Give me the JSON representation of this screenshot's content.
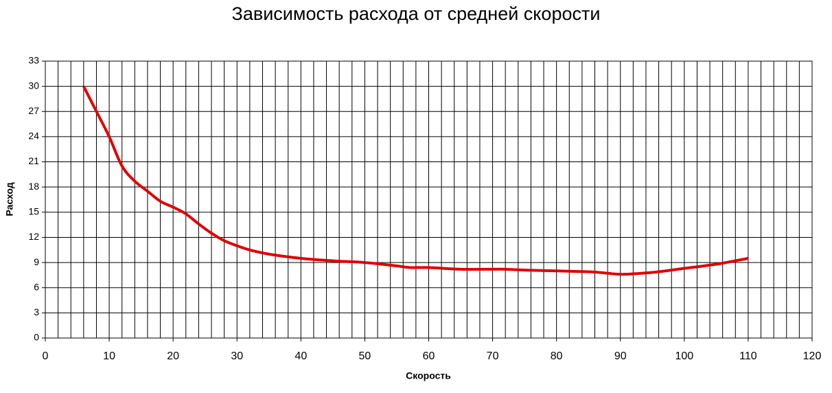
{
  "chart_data": {
    "type": "line",
    "title": "Зависимость расхода от средней скорости",
    "x_label": "Скорость",
    "y_label": "Расход",
    "x": [
      6,
      8,
      10,
      12,
      14,
      16,
      18,
      20,
      22,
      24,
      26,
      28,
      30,
      32,
      35,
      40,
      45,
      50,
      55,
      57,
      60,
      65,
      70,
      72,
      75,
      80,
      85,
      87,
      90,
      93,
      96,
      100,
      105,
      110
    ],
    "series": [
      {
        "name": "Расход",
        "color": "#e00000",
        "values": [
          30,
          27,
          24,
          20.5,
          18.7,
          17.5,
          16.3,
          15.6,
          14.8,
          13.6,
          12.5,
          11.6,
          11,
          10.5,
          10,
          9.5,
          9.2,
          9,
          8.6,
          8.4,
          8.4,
          8.2,
          8.2,
          8.2,
          8.1,
          8,
          7.9,
          7.8,
          7.6,
          7.7,
          7.9,
          8.3,
          8.8,
          9.5
        ]
      }
    ],
    "xlim": [
      0,
      120
    ],
    "xticks": [
      0,
      10,
      20,
      30,
      40,
      50,
      60,
      70,
      80,
      90,
      100,
      110,
      120
    ],
    "ylim": [
      0,
      33
    ],
    "yticks": [
      0,
      3,
      6,
      9,
      12,
      15,
      18,
      21,
      24,
      27,
      30,
      33
    ],
    "grid": true,
    "x_grid_step": 2
  }
}
